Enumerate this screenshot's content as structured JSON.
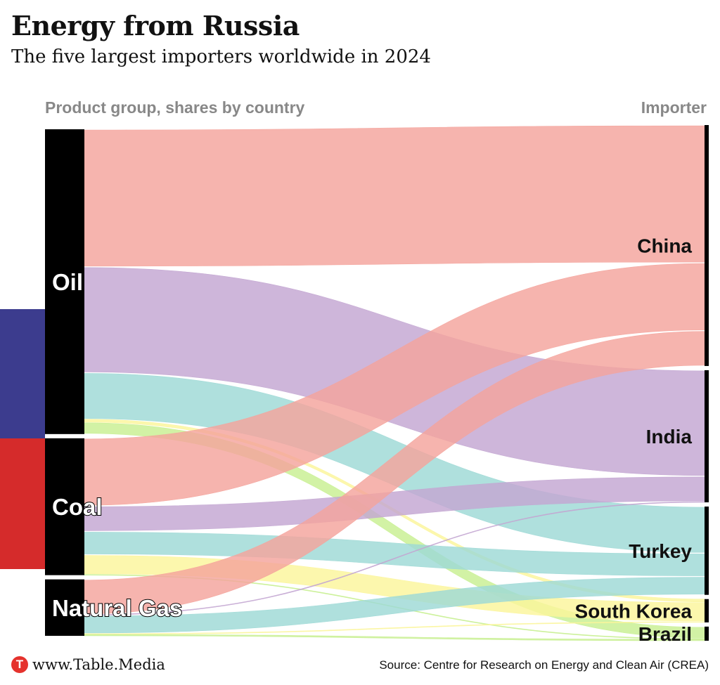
{
  "title": "Energy from Russia",
  "subtitle": "The five largest importers worldwide in 2024",
  "headers": {
    "left": "Product group, shares by country",
    "right": "Importer"
  },
  "footer": {
    "brand": "www.Table.Media",
    "logo_letter": "T",
    "source": "Source: Centre for Research on Energy and Clean Air (CREA)"
  },
  "colors": {
    "China": "#f4a49c",
    "India": "#c3a6d2",
    "Turkey": "#9ed9d6",
    "South Korea": "#fbf59b",
    "Brazil": "#c8ef91",
    "node": "#000000",
    "flag_white": "#ffffff",
    "flag_blue": "#3c3c8e",
    "flag_red": "#d52b2b"
  },
  "chart_data": {
    "type": "sankey",
    "sources": [
      "Oil",
      "Coal",
      "Natural Gas"
    ],
    "targets": [
      "China",
      "India",
      "Turkey",
      "South Korea",
      "Brazil"
    ],
    "flows": [
      {
        "source": "Oil",
        "target": "China",
        "value": 195
      },
      {
        "source": "Oil",
        "target": "India",
        "value": 150
      },
      {
        "source": "Oil",
        "target": "Turkey",
        "value": 66
      },
      {
        "source": "Oil",
        "target": "South Korea",
        "value": 4
      },
      {
        "source": "Oil",
        "target": "Brazil",
        "value": 17
      },
      {
        "source": "Coal",
        "target": "China",
        "value": 96
      },
      {
        "source": "Coal",
        "target": "India",
        "value": 36
      },
      {
        "source": "Coal",
        "target": "Turkey",
        "value": 33
      },
      {
        "source": "Coal",
        "target": "South Korea",
        "value": 28
      },
      {
        "source": "Coal",
        "target": "Brazil",
        "value": 1
      },
      {
        "source": "Natural Gas",
        "target": "China",
        "value": 50
      },
      {
        "source": "Natural Gas",
        "target": "India",
        "value": 1
      },
      {
        "source": "Natural Gas",
        "target": "Turkey",
        "value": 26
      },
      {
        "source": "Natural Gas",
        "target": "South Korea",
        "value": 1
      },
      {
        "source": "Natural Gas",
        "target": "Brazil",
        "value": 2
      }
    ]
  }
}
